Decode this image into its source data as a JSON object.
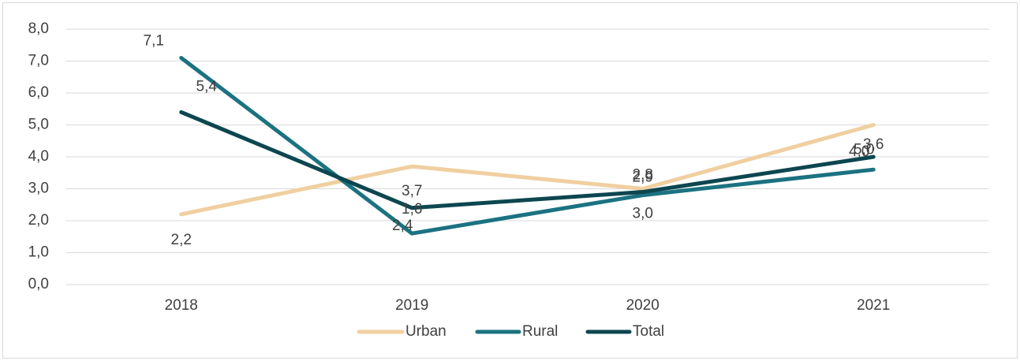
{
  "chart_data": {
    "type": "line",
    "categories": [
      "2018",
      "2019",
      "2020",
      "2021"
    ],
    "series": [
      {
        "name": "Urban",
        "color": "#f0cfa0",
        "values": [
          2.2,
          3.7,
          3.0,
          5.0
        ],
        "value_labels": [
          "2,2",
          "3,7",
          "3,0",
          "5,0"
        ]
      },
      {
        "name": "Rural",
        "color": "#1b7280",
        "values": [
          7.1,
          1.6,
          2.8,
          3.6
        ],
        "value_labels": [
          "7,1",
          "1,6",
          "2,8",
          "3,6"
        ]
      },
      {
        "name": "Total",
        "color": "#0d4650",
        "values": [
          5.4,
          2.4,
          2.9,
          4.0
        ],
        "value_labels": [
          "5,4",
          "2,4",
          "2,9",
          "4,0"
        ]
      }
    ],
    "ylim": [
      0,
      8
    ],
    "yticks": [
      {
        "value": 0,
        "label": "0,0"
      },
      {
        "value": 1,
        "label": "1,0"
      },
      {
        "value": 2,
        "label": "2,0"
      },
      {
        "value": 3,
        "label": "3,0"
      },
      {
        "value": 4,
        "label": "4,0"
      },
      {
        "value": 5,
        "label": "5,0"
      },
      {
        "value": 6,
        "label": "6,0"
      },
      {
        "value": 7,
        "label": "7,0"
      },
      {
        "value": 8,
        "label": "8,0"
      }
    ],
    "grid": true,
    "legend": "bottom"
  }
}
